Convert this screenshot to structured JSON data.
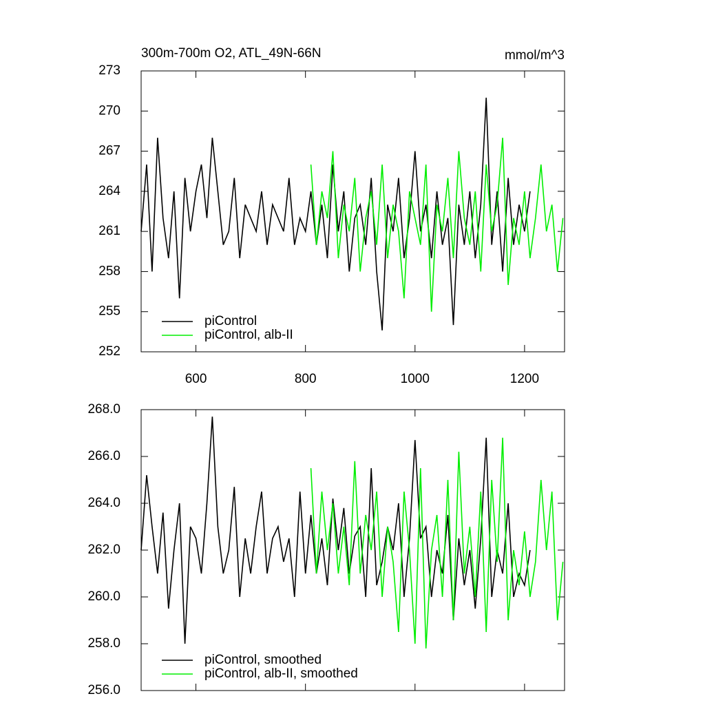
{
  "chart_data": [
    {
      "type": "line",
      "title": "300m-700m O2, ATL_49N-66N",
      "units_label": "mmol/m^3",
      "x": [
        500,
        510,
        520,
        530,
        540,
        550,
        560,
        570,
        580,
        590,
        600,
        610,
        620,
        630,
        640,
        650,
        660,
        670,
        680,
        690,
        700,
        710,
        720,
        730,
        740,
        750,
        760,
        770,
        780,
        790,
        800,
        810,
        820,
        830,
        840,
        850,
        860,
        870,
        880,
        890,
        900,
        910,
        920,
        930,
        940,
        950,
        960,
        970,
        980,
        990,
        1000,
        1010,
        1020,
        1030,
        1040,
        1050,
        1060,
        1070,
        1080,
        1090,
        1100,
        1110,
        1120,
        1130,
        1140,
        1150,
        1160,
        1170,
        1180,
        1190,
        1200,
        1210,
        1220,
        1230,
        1240,
        1250,
        1260,
        1270
      ],
      "xlim": [
        500,
        1273
      ],
      "xticks": [
        600,
        800,
        1000,
        1200
      ],
      "show_xtick_labels": true,
      "ylim": [
        252,
        273
      ],
      "yticks": [
        252,
        255,
        258,
        261,
        264,
        267,
        270,
        273
      ],
      "series": [
        {
          "name": "piControl",
          "color": "#000000",
          "values": [
            261,
            266,
            258,
            268,
            262,
            259,
            264,
            256,
            265,
            261,
            264,
            266,
            262,
            268,
            264,
            260,
            261,
            265,
            259,
            263,
            262,
            261,
            264,
            260,
            263,
            262,
            261,
            265,
            260,
            262,
            261,
            264,
            260,
            263,
            259,
            266,
            261,
            264,
            258,
            262,
            263,
            260,
            265,
            258,
            253.6,
            263,
            261,
            265,
            259,
            262,
            267,
            261,
            263,
            259,
            264,
            260,
            262,
            254,
            263,
            260,
            264,
            259,
            263,
            271,
            260,
            264,
            258,
            265,
            260,
            263,
            261,
            264,
            null,
            null,
            null,
            null,
            null,
            null
          ]
        },
        {
          "name": "piControl, alb-II",
          "color": "#00ee00",
          "values": [
            null,
            null,
            null,
            null,
            null,
            null,
            null,
            null,
            null,
            null,
            null,
            null,
            null,
            null,
            null,
            null,
            null,
            null,
            null,
            null,
            null,
            null,
            null,
            null,
            null,
            null,
            null,
            null,
            null,
            null,
            null,
            266,
            260,
            264,
            262,
            267,
            259,
            263,
            261,
            265,
            258,
            262,
            264,
            260,
            266,
            259,
            263,
            261,
            256,
            264,
            262,
            260,
            266,
            255,
            263,
            261,
            265,
            259,
            267,
            262,
            260,
            264,
            258,
            266,
            261,
            263,
            268,
            257,
            262,
            260,
            264,
            259,
            262,
            266,
            261,
            263,
            258,
            262
          ]
        }
      ]
    },
    {
      "type": "line",
      "x": [
        500,
        510,
        520,
        530,
        540,
        550,
        560,
        570,
        580,
        590,
        600,
        610,
        620,
        630,
        640,
        650,
        660,
        670,
        680,
        690,
        700,
        710,
        720,
        730,
        740,
        750,
        760,
        770,
        780,
        790,
        800,
        810,
        820,
        830,
        840,
        850,
        860,
        870,
        880,
        890,
        900,
        910,
        920,
        930,
        940,
        950,
        960,
        970,
        980,
        990,
        1000,
        1010,
        1020,
        1030,
        1040,
        1050,
        1060,
        1070,
        1080,
        1090,
        1100,
        1110,
        1120,
        1130,
        1140,
        1150,
        1160,
        1170,
        1180,
        1190,
        1200,
        1210,
        1220,
        1230,
        1240,
        1250,
        1260,
        1270
      ],
      "xlim": [
        500,
        1273
      ],
      "xticks": [
        600,
        800,
        1000,
        1200
      ],
      "show_xtick_labels": false,
      "ylim": [
        256,
        268
      ],
      "yticks": [
        {
          "value": 256,
          "label": "256.0"
        },
        {
          "value": 258,
          "label": "258.0"
        },
        {
          "value": 260,
          "label": "260.0"
        },
        {
          "value": 262,
          "label": "262.0"
        },
        {
          "value": 264,
          "label": "264.0"
        },
        {
          "value": 266,
          "label": "266.0"
        },
        {
          "value": 268,
          "label": "268.0"
        }
      ],
      "series": [
        {
          "name": "piControl, smoothed",
          "color": "#000000",
          "values": [
            262,
            265.2,
            263,
            261,
            263.6,
            259.5,
            262,
            264,
            258,
            263,
            262.5,
            261,
            264,
            267.7,
            263,
            261,
            262,
            264.7,
            260,
            262.5,
            261,
            263,
            264.5,
            261,
            262.5,
            263,
            261.5,
            262.5,
            260,
            264.5,
            261,
            263.5,
            261,
            262.5,
            260.5,
            264.2,
            262,
            263.8,
            261,
            262.6,
            263,
            260,
            265.5,
            260.5,
            261.5,
            263,
            262,
            264,
            260,
            262.5,
            266.7,
            262.5,
            263,
            260,
            262,
            261,
            263.5,
            259,
            262.5,
            260.5,
            262,
            259.5,
            262.5,
            266.8,
            260,
            262,
            261,
            264,
            260,
            261,
            260.5,
            262,
            null,
            null,
            null,
            null,
            null,
            null
          ]
        },
        {
          "name": "piControl, alb-II, smoothed",
          "color": "#00ee00",
          "values": [
            null,
            null,
            null,
            null,
            null,
            null,
            null,
            null,
            null,
            null,
            null,
            null,
            null,
            null,
            null,
            null,
            null,
            null,
            null,
            null,
            null,
            null,
            null,
            null,
            null,
            null,
            null,
            null,
            null,
            null,
            null,
            265.5,
            261,
            264.5,
            262,
            264,
            261,
            263,
            260.5,
            265.8,
            261,
            263.5,
            262,
            264.5,
            260,
            263,
            261.5,
            258.5,
            264.5,
            262,
            258,
            265.5,
            257.8,
            262,
            263.5,
            260,
            265,
            259,
            266.2,
            261,
            263,
            260,
            264.5,
            258.5,
            265,
            261.5,
            266.8,
            259,
            262,
            260.5,
            262.8,
            260,
            261.5,
            265,
            262,
            264.5,
            259,
            261.5
          ]
        }
      ]
    }
  ]
}
